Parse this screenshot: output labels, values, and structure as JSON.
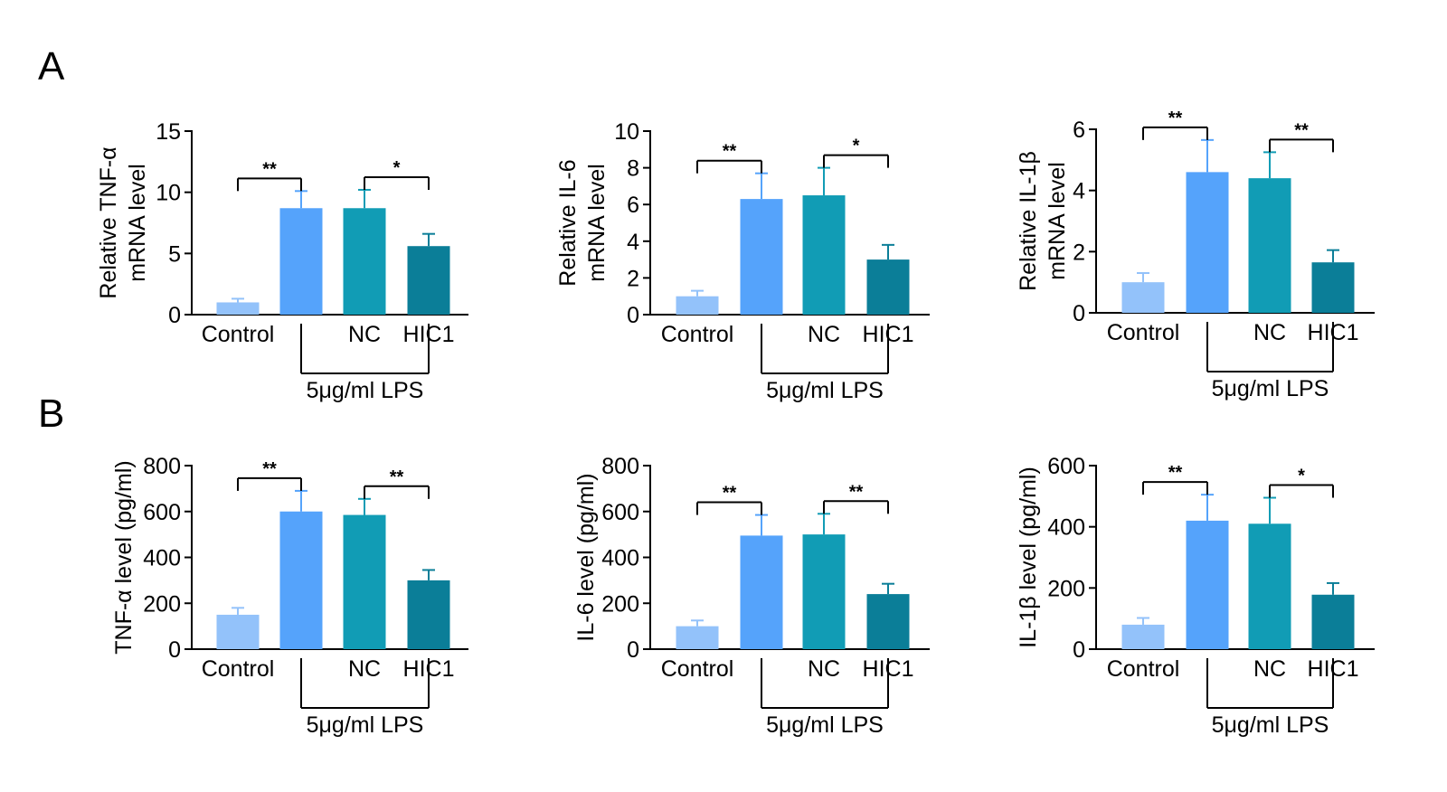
{
  "colors": {
    "Control": "#93c2fa",
    "LPS": "#55a3fb",
    "NC": "#119cb5",
    "HIC1": "#0b7e98",
    "axis": "#000000"
  },
  "group_label": "5μg/ml LPS",
  "chart_data": [
    {
      "type": "bar",
      "panel": "A",
      "ylabel": [
        "Relative TNF-α",
        "mRNA level"
      ],
      "categories": [
        "Control",
        "",
        "NC",
        "HIC1"
      ],
      "values": [
        1.0,
        8.7,
        8.7,
        5.6
      ],
      "errors": [
        0.3,
        1.4,
        1.5,
        1.0
      ],
      "ylim": [
        0,
        15
      ],
      "yticks": [
        0,
        5,
        10,
        15
      ],
      "group_label": "5μg/ml LPS",
      "significance": [
        {
          "from": 0,
          "to": 1,
          "label": "**"
        },
        {
          "from": 2,
          "to": 3,
          "label": "*"
        }
      ]
    },
    {
      "type": "bar",
      "ylabel": [
        "Relative IL-6",
        "mRNA level"
      ],
      "categories": [
        "Control",
        "",
        "NC",
        "HIC1"
      ],
      "values": [
        1.0,
        6.3,
        6.5,
        3.0
      ],
      "errors": [
        0.3,
        1.4,
        1.5,
        0.8
      ],
      "ylim": [
        0,
        10
      ],
      "yticks": [
        0,
        2,
        4,
        6,
        8,
        10
      ],
      "group_label": "5μg/ml LPS",
      "significance": [
        {
          "from": 0,
          "to": 1,
          "label": "**"
        },
        {
          "from": 2,
          "to": 3,
          "label": "*"
        }
      ]
    },
    {
      "type": "bar",
      "ylabel": [
        "Relative IL-1β",
        "mRNA level"
      ],
      "categories": [
        "Control",
        "",
        "NC",
        "HIC1"
      ],
      "values": [
        1.0,
        4.6,
        4.4,
        1.65
      ],
      "errors": [
        0.3,
        1.05,
        0.85,
        0.4
      ],
      "ylim": [
        0,
        6
      ],
      "yticks": [
        0,
        2,
        4,
        6
      ],
      "group_label": "5μg/ml LPS",
      "significance": [
        {
          "from": 0,
          "to": 1,
          "label": "**"
        },
        {
          "from": 2,
          "to": 3,
          "label": "**"
        }
      ]
    },
    {
      "type": "bar",
      "panel": "B",
      "ylabel": [
        "TNF-α level (pg/ml)"
      ],
      "categories": [
        "Control",
        "",
        "NC",
        "HIC1"
      ],
      "values": [
        150,
        600,
        585,
        300
      ],
      "errors": [
        30,
        90,
        70,
        45
      ],
      "ylim": [
        0,
        800
      ],
      "yticks": [
        0,
        200,
        400,
        600,
        800
      ],
      "group_label": "5μg/ml LPS",
      "significance": [
        {
          "from": 0,
          "to": 1,
          "label": "**"
        },
        {
          "from": 2,
          "to": 3,
          "label": "**"
        }
      ]
    },
    {
      "type": "bar",
      "ylabel": [
        "IL-6 level (pg/ml)"
      ],
      "categories": [
        "Control",
        "",
        "NC",
        "HIC1"
      ],
      "values": [
        100,
        495,
        500,
        240
      ],
      "errors": [
        25,
        90,
        90,
        45
      ],
      "ylim": [
        0,
        800
      ],
      "yticks": [
        0,
        200,
        400,
        600,
        800
      ],
      "group_label": "5μg/ml LPS",
      "significance": [
        {
          "from": 0,
          "to": 1,
          "label": "**"
        },
        {
          "from": 2,
          "to": 3,
          "label": "**"
        }
      ]
    },
    {
      "type": "bar",
      "ylabel": [
        "IL-1β level (pg/ml)"
      ],
      "categories": [
        "Control",
        "",
        "NC",
        "HIC1"
      ],
      "values": [
        80,
        420,
        410,
        178
      ],
      "errors": [
        22,
        85,
        85,
        38
      ],
      "ylim": [
        0,
        600
      ],
      "yticks": [
        0,
        200,
        400,
        600
      ],
      "group_label": "5μg/ml LPS",
      "significance": [
        {
          "from": 0,
          "to": 1,
          "label": "**"
        },
        {
          "from": 2,
          "to": 3,
          "label": "*"
        }
      ]
    }
  ]
}
